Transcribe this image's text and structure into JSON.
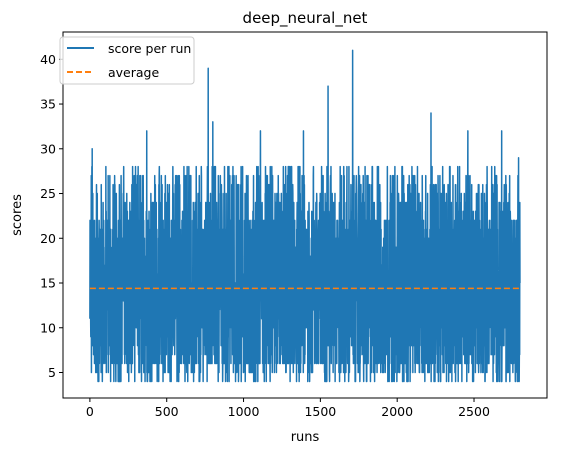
{
  "chart_data": {
    "type": "line",
    "title": "deep_neural_net",
    "xlabel": "runs",
    "ylabel": "scores",
    "xlim": [
      -175,
      2975
    ],
    "ylim": [
      2.15,
      43.05
    ],
    "xticks": [
      0,
      500,
      1000,
      1500,
      2000,
      2500
    ],
    "yticks": [
      5,
      10,
      15,
      20,
      25,
      30,
      35,
      40
    ],
    "grid": false,
    "legend_position": "top-left",
    "n_runs": 2800,
    "score_min": 4,
    "score_max": 41,
    "series": [
      {
        "name": "score per run",
        "color": "#1f77b4",
        "style": "solid",
        "peaks": [
          {
            "x": 15,
            "y": 30
          },
          {
            "x": 370,
            "y": 32
          },
          {
            "x": 770,
            "y": 39
          },
          {
            "x": 800,
            "y": 33
          },
          {
            "x": 1110,
            "y": 32
          },
          {
            "x": 1390,
            "y": 32
          },
          {
            "x": 1550,
            "y": 37
          },
          {
            "x": 1710,
            "y": 41
          },
          {
            "x": 2220,
            "y": 34
          },
          {
            "x": 2460,
            "y": 32
          },
          {
            "x": 2680,
            "y": 32
          },
          {
            "x": 2790,
            "y": 29
          }
        ]
      },
      {
        "name": "average",
        "color": "#ff7f0e",
        "style": "dashed",
        "x": [
          0,
          2799
        ],
        "values": [
          14.4,
          14.4
        ]
      }
    ]
  }
}
